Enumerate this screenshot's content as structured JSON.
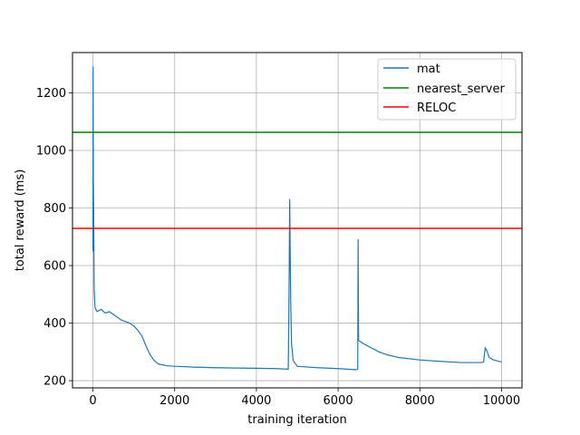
{
  "chart_data": {
    "type": "line",
    "xlabel": "training iteration",
    "ylabel": "total reward (ms)",
    "xlim": [
      -500,
      10500
    ],
    "ylim": [
      175,
      1340
    ],
    "xticks": [
      0,
      2000,
      4000,
      6000,
      8000,
      10000
    ],
    "yticks": [
      200,
      400,
      600,
      800,
      1000,
      1200
    ],
    "grid": true,
    "legend_position": "top-right",
    "series": [
      {
        "name": "mat",
        "color": "#1f77b4",
        "points": [
          [
            0,
            650
          ],
          [
            5,
            1290
          ],
          [
            10,
            900
          ],
          [
            20,
            760
          ],
          [
            30,
            520
          ],
          [
            50,
            455
          ],
          [
            100,
            440
          ],
          [
            200,
            448
          ],
          [
            300,
            435
          ],
          [
            400,
            440
          ],
          [
            500,
            430
          ],
          [
            600,
            420
          ],
          [
            700,
            410
          ],
          [
            800,
            405
          ],
          [
            900,
            400
          ],
          [
            1000,
            390
          ],
          [
            1100,
            375
          ],
          [
            1200,
            355
          ],
          [
            1300,
            320
          ],
          [
            1400,
            290
          ],
          [
            1500,
            270
          ],
          [
            1600,
            258
          ],
          [
            1800,
            252
          ],
          [
            2000,
            250
          ],
          [
            2500,
            247
          ],
          [
            3000,
            245
          ],
          [
            3500,
            244
          ],
          [
            4000,
            243
          ],
          [
            4500,
            242
          ],
          [
            4780,
            240
          ],
          [
            4800,
            520
          ],
          [
            4815,
            830
          ],
          [
            4825,
            680
          ],
          [
            4840,
            480
          ],
          [
            4860,
            330
          ],
          [
            4900,
            270
          ],
          [
            5000,
            250
          ],
          [
            5500,
            245
          ],
          [
            6000,
            242
          ],
          [
            6450,
            238
          ],
          [
            6480,
            240
          ],
          [
            6490,
            690
          ],
          [
            6500,
            340
          ],
          [
            6600,
            330
          ],
          [
            6800,
            315
          ],
          [
            7000,
            300
          ],
          [
            7200,
            290
          ],
          [
            7500,
            280
          ],
          [
            8000,
            272
          ],
          [
            8500,
            267
          ],
          [
            9000,
            263
          ],
          [
            9500,
            263
          ],
          [
            9560,
            265
          ],
          [
            9600,
            315
          ],
          [
            9650,
            300
          ],
          [
            9700,
            280
          ],
          [
            9800,
            272
          ],
          [
            10000,
            265
          ]
        ]
      },
      {
        "name": "nearest_server",
        "color": "#008000",
        "y": 1063
      },
      {
        "name": "RELOC",
        "color": "#ff0000",
        "y": 729
      }
    ]
  }
}
